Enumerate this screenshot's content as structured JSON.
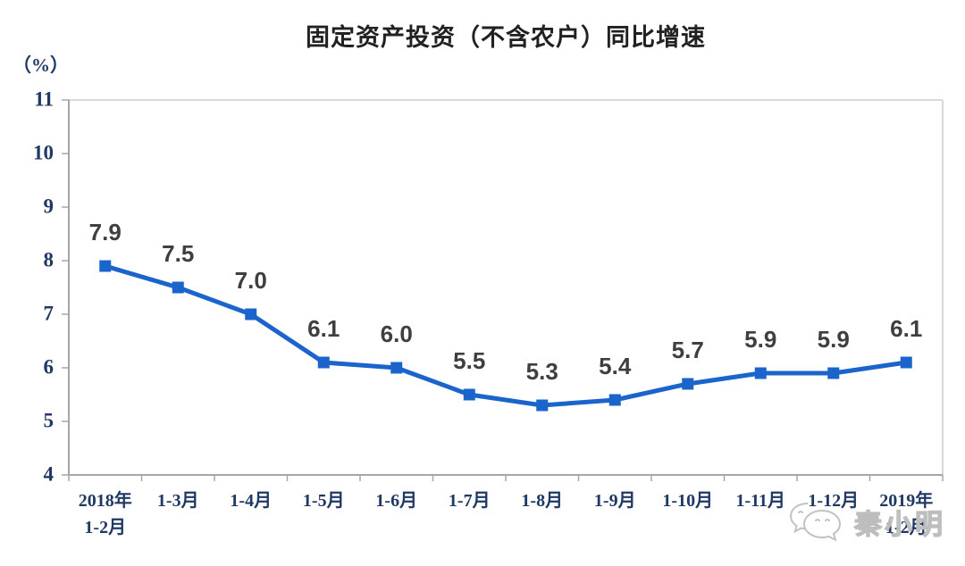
{
  "header": {
    "title": "固定资产投资（不含农户）同比增速"
  },
  "axes": {
    "unit_label": "（%）"
  },
  "watermark": {
    "text": "秦小明",
    "icon": "wechat-icon"
  },
  "chart_data": {
    "type": "line",
    "title": "固定资产投资（不含农户）同比增速",
    "categories": [
      "2018年\n1-2月",
      "1-3月",
      "1-4月",
      "1-5月",
      "1-6月",
      "1-7月",
      "1-8月",
      "1-9月",
      "1-10月",
      "1-11月",
      "1-12月",
      "2019年\n1-2月"
    ],
    "values": [
      7.9,
      7.5,
      7.0,
      6.1,
      6.0,
      5.5,
      5.3,
      5.4,
      5.7,
      5.9,
      5.9,
      6.1
    ],
    "data_labels": [
      "7.9",
      "7.5",
      "7.0",
      "6.1",
      "6.0",
      "5.5",
      "5.3",
      "5.4",
      "5.7",
      "5.9",
      "5.9",
      "6.1"
    ],
    "xlabel": "",
    "ylabel": "（%）",
    "ylim": [
      4,
      11
    ],
    "y_ticks": [
      11,
      10,
      9,
      8,
      7,
      6,
      5,
      4
    ],
    "grid": false,
    "legend_position": "none",
    "marker": "square",
    "colors": {
      "line": "#1A64CC",
      "marker": "#1A64CC",
      "data_label": "#3F3F3F",
      "axis_text": "#1F3864",
      "title_text": "#212121",
      "axis_line": "#A6A6A6",
      "frame_line": "#D9D9D9",
      "watermark": "#BDBDBD"
    }
  }
}
